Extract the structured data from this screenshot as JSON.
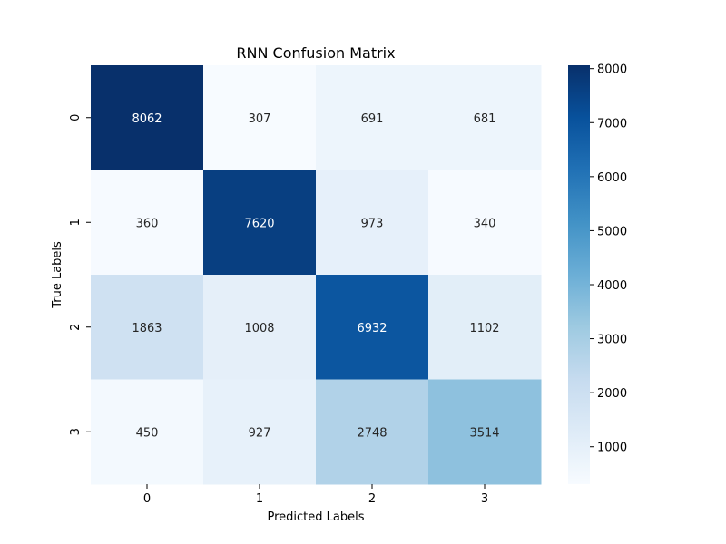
{
  "chart_data": {
    "type": "heatmap",
    "title": "RNN Confusion Matrix",
    "xlabel": "Predicted Labels",
    "ylabel": "True Labels",
    "x_categories": [
      "0",
      "1",
      "2",
      "3"
    ],
    "y_categories": [
      "0",
      "1",
      "2",
      "3"
    ],
    "values": [
      [
        8062,
        307,
        691,
        681
      ],
      [
        360,
        7620,
        973,
        340
      ],
      [
        1863,
        1008,
        6932,
        1102
      ],
      [
        450,
        927,
        2748,
        3514
      ]
    ],
    "colorscale": "Blues",
    "color_range": [
      307,
      8062
    ],
    "colorbar_ticks": [
      1000,
      2000,
      3000,
      4000,
      5000,
      6000,
      7000,
      8000
    ]
  }
}
